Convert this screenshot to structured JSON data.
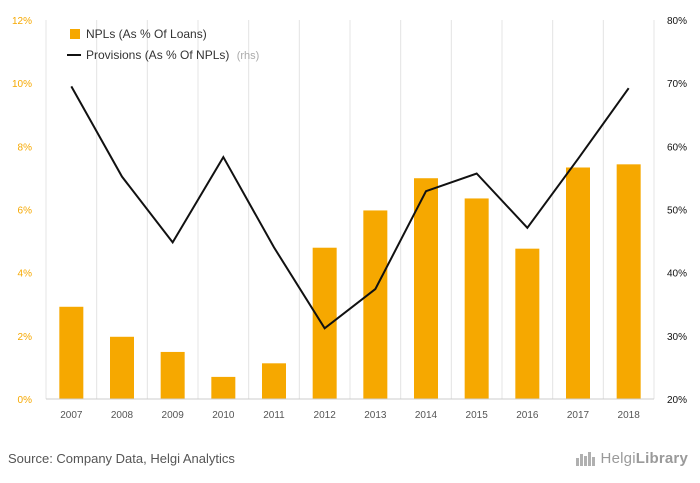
{
  "chart_data": {
    "type": "bar+line",
    "categories": [
      "2007",
      "2008",
      "2009",
      "2010",
      "2011",
      "2012",
      "2013",
      "2014",
      "2015",
      "2016",
      "2017",
      "2018"
    ],
    "series": [
      {
        "name": "NPLs (As % Of Loans)",
        "type": "bar",
        "axis": "left",
        "color": "#f6a800",
        "values": [
          2.92,
          1.97,
          1.49,
          0.7,
          1.13,
          4.79,
          5.97,
          6.99,
          6.35,
          4.76,
          7.33,
          7.43
        ]
      },
      {
        "name": "Provisions (As % Of NPLs)",
        "type": "line",
        "axis": "right",
        "color": "#111111",
        "values": [
          69.5,
          55.2,
          44.8,
          58.3,
          44.0,
          31.2,
          37.4,
          52.9,
          55.7,
          47.1,
          58.0,
          69.2
        ]
      }
    ],
    "left_axis": {
      "ylim": [
        0,
        12
      ],
      "ticks": [
        "0%",
        "2%",
        "4%",
        "6%",
        "8%",
        "10%",
        "12%"
      ],
      "color": "#f6a800"
    },
    "right_axis": {
      "ylim": [
        20,
        80
      ],
      "ticks": [
        "20%",
        "30%",
        "40%",
        "50%",
        "60%",
        "70%",
        "80%"
      ],
      "color": "#111111"
    },
    "legend": {
      "placement": "top-left",
      "items": [
        {
          "label": "NPLs (As % Of Loans)",
          "suffix": "",
          "symbol": "square",
          "color": "#f6a800"
        },
        {
          "label": "Provisions (As % Of NPLs)",
          "suffix": "(rhs)",
          "symbol": "line",
          "color": "#111111"
        }
      ]
    },
    "grid": {
      "vertical": true,
      "horizontal": false
    }
  },
  "footer": {
    "source": "Source: Company Data, Helgi Analytics",
    "brand_light": "Helgi",
    "brand_bold": "Library",
    "brand_icon": "city-skyline-icon"
  }
}
